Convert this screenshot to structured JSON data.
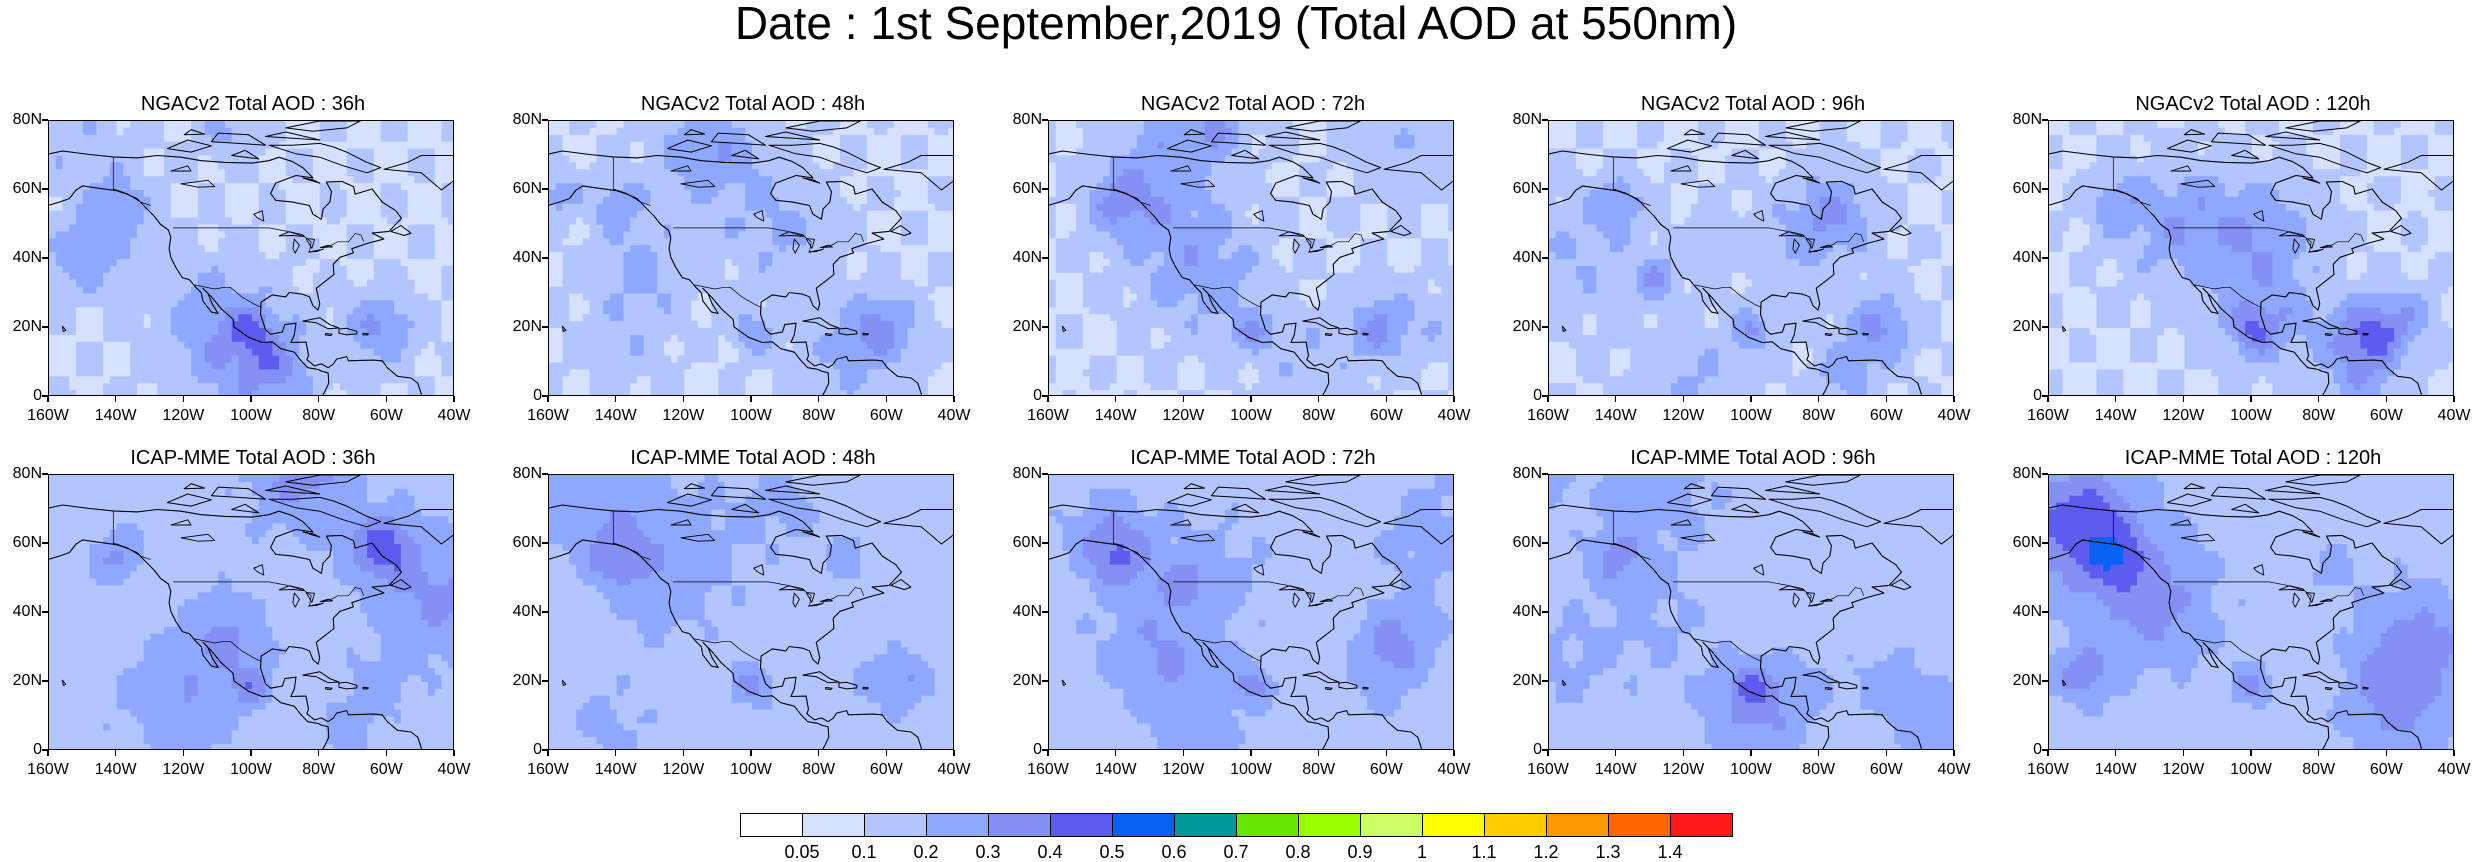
{
  "title": "Date : 1st September,2019 (Total AOD at 550nm)",
  "panels": [
    {
      "title": "NGACv2 Total AOD : 36h",
      "model": "NGACv2",
      "lead": "36h"
    },
    {
      "title": "NGACv2 Total AOD : 48h",
      "model": "NGACv2",
      "lead": "48h"
    },
    {
      "title": "NGACv2 Total AOD : 72h",
      "model": "NGACv2",
      "lead": "72h"
    },
    {
      "title": "NGACv2 Total AOD : 96h",
      "model": "NGACv2",
      "lead": "96h"
    },
    {
      "title": "NGACv2 Total AOD : 120h",
      "model": "NGACv2",
      "lead": "120h"
    },
    {
      "title": "ICAP-MME Total AOD : 36h",
      "model": "ICAP-MME",
      "lead": "36h"
    },
    {
      "title": "ICAP-MME Total AOD : 48h",
      "model": "ICAP-MME",
      "lead": "48h"
    },
    {
      "title": "ICAP-MME Total AOD : 72h",
      "model": "ICAP-MME",
      "lead": "72h"
    },
    {
      "title": "ICAP-MME Total AOD : 96h",
      "model": "ICAP-MME",
      "lead": "96h"
    },
    {
      "title": "ICAP-MME Total AOD : 120h",
      "model": "ICAP-MME",
      "lead": "120h"
    }
  ],
  "lat_ticks": [
    "80N",
    "60N",
    "40N",
    "20N",
    "0"
  ],
  "lon_ticks": [
    "160W",
    "140W",
    "120W",
    "100W",
    "80W",
    "60W",
    "40W"
  ],
  "colorbar": {
    "labels": [
      "0.05",
      "0.1",
      "0.2",
      "0.3",
      "0.4",
      "0.5",
      "0.6",
      "0.7",
      "0.8",
      "0.9",
      "1",
      "1.1",
      "1.2",
      "1.3",
      "1.4"
    ],
    "colors": [
      "#ffffff",
      "#d6e0ff",
      "#b3c5ff",
      "#8fa8ff",
      "#8590f5",
      "#5c5cf0",
      "#0a62f5",
      "#009999",
      "#66e600",
      "#99ff00",
      "#ccff66",
      "#ffff00",
      "#ffcc00",
      "#ff9900",
      "#ff6600",
      "#ff1a1a"
    ]
  }
}
